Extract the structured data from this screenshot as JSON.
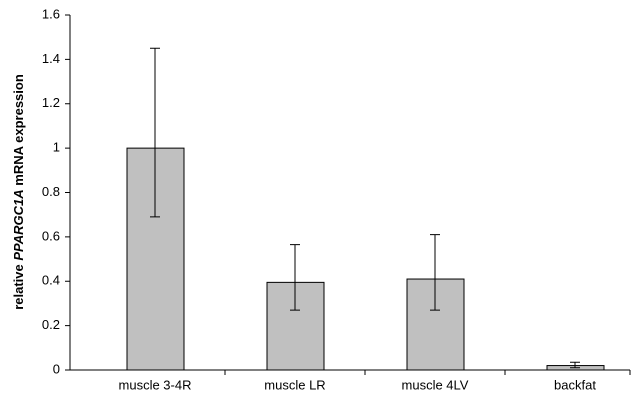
{
  "chart_data": {
    "type": "bar",
    "ylabel_parts": [
      "relative",
      "PPARGC1A",
      "mRNA expression"
    ],
    "categories": [
      "muscle 3-4R",
      "muscle LR",
      "muscle 4LV",
      "backfat"
    ],
    "values": [
      1.0,
      0.395,
      0.41,
      0.02
    ],
    "error_minus": [
      0.31,
      0.125,
      0.14,
      0.01
    ],
    "error_plus": [
      0.45,
      0.17,
      0.2,
      0.015
    ],
    "color": "#c0c0c0",
    "ylim": [
      0,
      1.6
    ],
    "yticks": [
      0,
      0.2,
      0.4,
      0.6,
      0.8,
      1,
      1.2,
      1.4,
      1.6
    ],
    "grid": false
  }
}
